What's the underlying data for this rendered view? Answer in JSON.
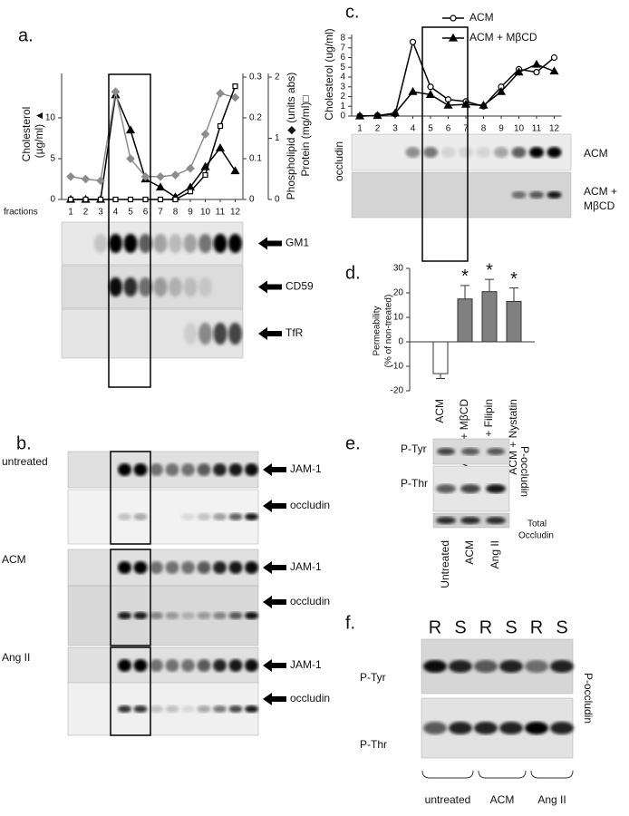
{
  "panel_labels": [
    "a.",
    "b.",
    "c.",
    "d.",
    "e.",
    "f."
  ],
  "chart_data": [
    {
      "type": "line",
      "categories": [
        "1",
        "2",
        "3",
        "4",
        "5",
        "6",
        "7",
        "8",
        "9",
        "10",
        "11",
        "12"
      ],
      "xlabel": "fractions",
      "ylabel": [
        "Cholesterol",
        "(µg/ml) ▲"
      ],
      "ylim": [
        0,
        15
      ],
      "yticks": [
        0,
        5,
        10
      ],
      "y2label": "Phospholipid ◆ (units abs)",
      "y2lim": [
        0,
        0.3
      ],
      "y2ticks": [
        0,
        0.1,
        0.2,
        0.3
      ],
      "y3label": "Protein (mg/ml)□",
      "y3lim": [
        0,
        2
      ],
      "y3ticks": [
        0,
        1,
        2
      ],
      "series": [
        {
          "color": "#000000",
          "marker": "triangle",
          "values": [
            0,
            0,
            0,
            12.8,
            8.5,
            2.5,
            1.5,
            0.3,
            1.5,
            4,
            6.3,
            3.5
          ]
        },
        {
          "color": "#8c8c8c",
          "marker": "diamond",
          "axis": "y2",
          "values": [
            0.056,
            0.05,
            0.046,
            0.264,
            0.1,
            0.056,
            0.056,
            0.06,
            0.076,
            0.16,
            0.26,
            0.25
          ]
        },
        {
          "color": "#000000",
          "marker": "square",
          "axis": "y3",
          "values": [
            0,
            0,
            0,
            0,
            0,
            0,
            0,
            0,
            0.13,
            0.4,
            1.2,
            1.85
          ]
        }
      ]
    },
    {
      "type": "line",
      "categories": [
        "1",
        "2",
        "3",
        "4",
        "5",
        "6",
        "7",
        "8",
        "9",
        "10",
        "11",
        "12"
      ],
      "ylabel": [
        "Cholesterol (ug/ml)"
      ],
      "ylim": [
        0,
        8
      ],
      "yticks": [
        0,
        1,
        2,
        3,
        4,
        5,
        6,
        7,
        8
      ],
      "series": [
        {
          "name": "ACM",
          "color": "#000000",
          "marker": "circle",
          "values": [
            0,
            0.05,
            0.2,
            7.6,
            3,
            1.7,
            1.5,
            1,
            3,
            4.8,
            4.5,
            6
          ]
        },
        {
          "name": "ACM + MβCD",
          "color": "#000000",
          "marker": "triangle",
          "values": [
            0,
            0.05,
            0.3,
            2.5,
            2.2,
            1.1,
            1.2,
            1.1,
            2.5,
            4.5,
            5.3,
            4.6
          ]
        }
      ]
    },
    {
      "type": "bar",
      "categories": [
        "ACM",
        "ACM + MβCD",
        "ACM + Filipin",
        "ACM + Nystatin"
      ],
      "values": [
        -13,
        17.5,
        20.5,
        16.5
      ],
      "errors": [
        2,
        5.5,
        5,
        5.5
      ],
      "colors": [
        "#ffffff",
        "#808080",
        "#808080",
        "#808080"
      ],
      "significance": [
        null,
        "*",
        "*",
        "*"
      ],
      "ylabel": [
        "Permeability",
        "(% of non-treated)"
      ],
      "ylim": [
        -20,
        30
      ],
      "yticks": [
        -20,
        -10,
        0,
        10,
        20,
        30
      ]
    }
  ],
  "blots": {
    "a": {
      "rows": [
        "GM1",
        "CD59",
        "TfR"
      ]
    },
    "b": {
      "groups": [
        {
          "label": "untreated",
          "rows": [
            "JAM-1",
            "occludin"
          ]
        },
        {
          "label": "ACM",
          "rows": [
            "JAM-1",
            "occludin"
          ]
        },
        {
          "label": "Ang II",
          "rows": [
            "JAM-1",
            "occludin"
          ]
        }
      ]
    },
    "c": {
      "side_label": "occludin",
      "rows": [
        [
          "ACM"
        ],
        [
          "ACM +",
          "MβCD"
        ]
      ]
    },
    "e": {
      "rows": [
        "P-Tyr",
        "P-Thr"
      ],
      "side_label": "P-occludin",
      "total": [
        "Total",
        "Occludin"
      ],
      "lanes": [
        "Untreated",
        "ACM",
        "Ang II"
      ]
    },
    "f": {
      "lanes": [
        "R",
        "S",
        "R",
        "S",
        "R",
        "S"
      ],
      "rows": [
        "P-Tyr",
        "P-Thr"
      ],
      "side_label": "P-occludin",
      "groups": [
        "untreated",
        "ACM",
        "Ang II"
      ]
    }
  }
}
